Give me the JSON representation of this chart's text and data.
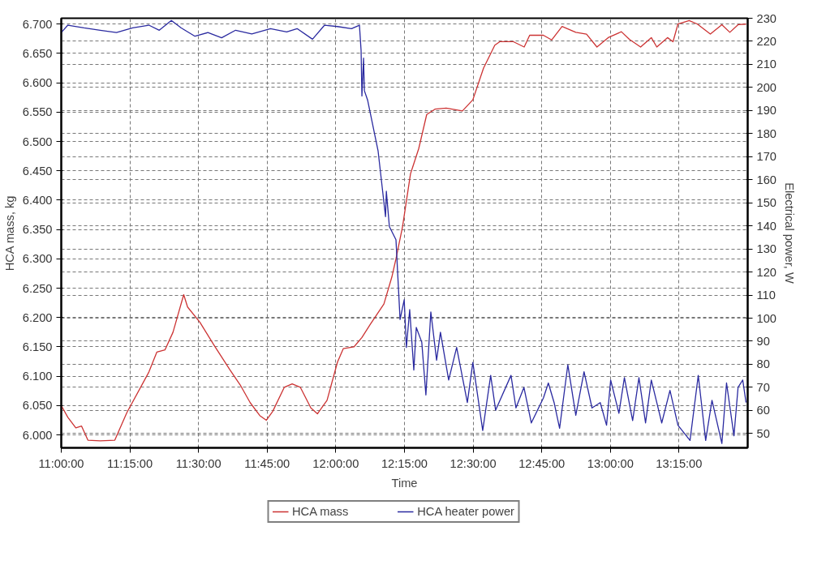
{
  "chart_data": {
    "type": "line",
    "xlabel": "Time",
    "ylabel": "HCA mass, kg",
    "y2label": "Electrical power, W",
    "xlim": [
      11.0,
      13.5
    ],
    "xticks": [
      {
        "value": 11.0,
        "label": "11:00:00"
      },
      {
        "value": 11.25,
        "label": "11:15:00"
      },
      {
        "value": 11.5,
        "label": "11:30:00"
      },
      {
        "value": 11.75,
        "label": "11:45:00"
      },
      {
        "value": 12.0,
        "label": "12:00:00"
      },
      {
        "value": 12.25,
        "label": "12:15:00"
      },
      {
        "value": 12.5,
        "label": "12:30:00"
      },
      {
        "value": 12.75,
        "label": "12:45:00"
      },
      {
        "value": 13.0,
        "label": "13:00:00"
      },
      {
        "value": 13.25,
        "label": "13:15:00"
      }
    ],
    "ylim": [
      5.978,
      6.71
    ],
    "yticks": [
      {
        "value": 6.0,
        "label": "6.000"
      },
      {
        "value": 6.05,
        "label": "6.050"
      },
      {
        "value": 6.1,
        "label": "6.100"
      },
      {
        "value": 6.15,
        "label": "6.150"
      },
      {
        "value": 6.2,
        "label": "6.200"
      },
      {
        "value": 6.25,
        "label": "6.250"
      },
      {
        "value": 6.3,
        "label": "6.300"
      },
      {
        "value": 6.35,
        "label": "6.350"
      },
      {
        "value": 6.4,
        "label": "6.400"
      },
      {
        "value": 6.45,
        "label": "6.450"
      },
      {
        "value": 6.5,
        "label": "6.500"
      },
      {
        "value": 6.55,
        "label": "6.550"
      },
      {
        "value": 6.6,
        "label": "6.600"
      },
      {
        "value": 6.65,
        "label": "6.650"
      },
      {
        "value": 6.7,
        "label": "6.700"
      }
    ],
    "y2lim": [
      43.8,
      230
    ],
    "y2ticks": [
      50,
      60,
      70,
      80,
      90,
      100,
      110,
      120,
      130,
      140,
      150,
      160,
      170,
      180,
      190,
      200,
      210,
      220,
      230
    ],
    "grid": true,
    "legend": "bottom",
    "series": [
      {
        "name": "HCA mass",
        "color": "#cc3333",
        "x": [
          11.0,
          11.024,
          11.053,
          11.074,
          11.097,
          11.142,
          11.195,
          11.239,
          11.319,
          11.348,
          11.378,
          11.407,
          11.446,
          11.46,
          11.505,
          11.555,
          11.614,
          11.652,
          11.688,
          11.723,
          11.747,
          11.77,
          11.812,
          11.841,
          11.871,
          11.909,
          11.933,
          11.968,
          12.006,
          12.027,
          12.066,
          12.095,
          12.125,
          12.175,
          12.204,
          12.219,
          12.243,
          12.272,
          12.302,
          12.331,
          12.361,
          12.402,
          12.461,
          12.499,
          12.538,
          12.579,
          12.597,
          12.647,
          12.686,
          12.706,
          12.756,
          12.786,
          12.824,
          12.874,
          12.913,
          12.951,
          12.992,
          13.04,
          13.069,
          13.11,
          13.149,
          13.169,
          13.208,
          13.228,
          13.246,
          13.287,
          13.317,
          13.364,
          13.406,
          13.435,
          13.465,
          13.494
        ],
        "values": [
          6.05,
          6.03,
          6.012,
          6.015,
          5.991,
          5.99,
          5.991,
          6.038,
          6.107,
          6.141,
          6.145,
          6.175,
          6.239,
          6.218,
          6.192,
          6.154,
          6.111,
          6.085,
          6.055,
          6.033,
          6.025,
          6.04,
          6.081,
          6.087,
          6.081,
          6.046,
          6.036,
          6.059,
          6.124,
          6.147,
          6.15,
          6.166,
          6.188,
          6.223,
          6.269,
          6.3,
          6.355,
          6.445,
          6.488,
          6.546,
          6.555,
          6.557,
          6.552,
          6.571,
          6.625,
          6.664,
          6.67,
          6.67,
          6.661,
          6.681,
          6.681,
          6.673,
          6.696,
          6.686,
          6.683,
          6.661,
          6.677,
          6.687,
          6.674,
          6.661,
          6.677,
          6.661,
          6.677,
          6.67,
          6.7,
          6.706,
          6.7,
          6.683,
          6.699,
          6.686,
          6.699,
          6.7
        ]
      },
      {
        "name": "HCA heater power",
        "color": "#2a2aa0",
        "axis": "y2",
        "x": [
          11.0,
          11.024,
          11.083,
          11.142,
          11.201,
          11.26,
          11.319,
          11.357,
          11.401,
          11.437,
          11.487,
          11.534,
          11.584,
          11.635,
          11.694,
          11.762,
          11.821,
          11.859,
          11.915,
          11.959,
          12.006,
          12.057,
          12.086,
          12.092,
          12.095,
          12.101,
          12.104,
          12.116,
          12.154,
          12.181,
          12.184,
          12.195,
          12.219,
          12.225,
          12.234,
          12.249,
          12.257,
          12.269,
          12.284,
          12.293,
          12.313,
          12.328,
          12.346,
          12.367,
          12.381,
          12.411,
          12.44,
          12.479,
          12.499,
          12.535,
          12.564,
          12.582,
          12.638,
          12.656,
          12.685,
          12.712,
          12.756,
          12.774,
          12.795,
          12.815,
          12.845,
          12.874,
          12.904,
          12.933,
          12.963,
          12.986,
          13.001,
          13.031,
          13.051,
          13.081,
          13.104,
          13.128,
          13.149,
          13.187,
          13.217,
          13.246,
          13.29,
          13.32,
          13.347,
          13.37,
          13.406,
          13.423,
          13.45,
          13.465,
          13.482,
          13.494
        ],
        "values": [
          223.8,
          227,
          225.8,
          224.8,
          223.8,
          225.8,
          227,
          224.8,
          229,
          225.8,
          222.2,
          223.8,
          221.5,
          224.8,
          223.2,
          225.5,
          224.1,
          225.5,
          220.9,
          227,
          226.4,
          225.5,
          227,
          216,
          196.3,
          212.7,
          198.6,
          194.4,
          172.4,
          144,
          155,
          139.7,
          134,
          120,
          99.4,
          108,
          87.3,
          103.7,
          77.5,
          96,
          89.6,
          66.7,
          102.7,
          81.8,
          93.9,
          73.2,
          87.3,
          63.4,
          80.8,
          51.3,
          75.2,
          60.1,
          75.2,
          61.1,
          70,
          54.6,
          65.4,
          71.9,
          63.4,
          52.3,
          79.8,
          57.9,
          76.8,
          61.1,
          63.4,
          53.6,
          73.2,
          58.8,
          74.2,
          55.6,
          74.2,
          54.6,
          73.2,
          54.6,
          68.7,
          53.6,
          47,
          75.2,
          47,
          64.4,
          45.7,
          71.9,
          49,
          70,
          73.2,
          63.4
        ]
      }
    ]
  }
}
